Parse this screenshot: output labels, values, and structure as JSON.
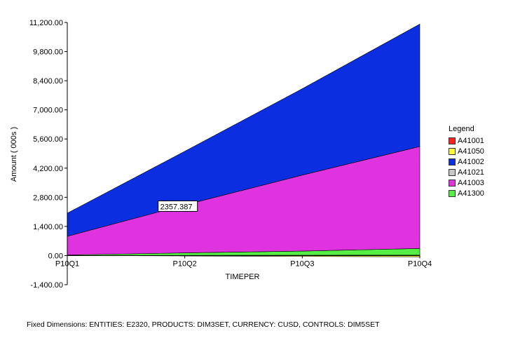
{
  "chart_data": {
    "type": "area",
    "stacked": true,
    "categories": [
      "P10Q1",
      "P10Q2",
      "P10Q3",
      "P10Q4"
    ],
    "xlabel": "TIMEPER",
    "ylabel": "Amount ( 000s )",
    "ylim": [
      -1400,
      11200
    ],
    "yticks": [
      "11,200.00",
      "9,800.00",
      "8,400.00",
      "7,000.00",
      "5,600.00",
      "4,200.00",
      "2,800.00",
      "1,400.00",
      "0.00",
      "-1,400.00"
    ],
    "ytick_values": [
      11200,
      9800,
      8400,
      7000,
      5600,
      4200,
      2800,
      1400,
      0,
      -1400
    ],
    "legend_title": "Legend",
    "legend_position": "right",
    "series": [
      {
        "name": "A41001",
        "color": "#ff2020",
        "values": [
          5,
          10,
          15,
          20
        ]
      },
      {
        "name": "A41050",
        "color": "#ffff33",
        "values": [
          0,
          -20,
          -40,
          -60
        ]
      },
      {
        "name": "A41021",
        "color": "#c8c8c8",
        "values": [
          0,
          0,
          0,
          0
        ]
      },
      {
        "name": "A41300",
        "color": "#55ee44",
        "values": [
          20,
          120,
          200,
          320
        ]
      },
      {
        "name": "A41003",
        "color": "#e033e0",
        "values": [
          900,
          2300,
          3650,
          4900
        ]
      },
      {
        "name": "A41002",
        "color": "#0a2ee0",
        "values": [
          1110,
          2580,
          4150,
          5880
        ]
      }
    ],
    "legend_order": [
      "A41001",
      "A41050",
      "A41002",
      "A41021",
      "A41003",
      "A41300"
    ],
    "annotation": {
      "text": "2357.387",
      "category": "P10Q2",
      "value": 2357.387
    }
  },
  "footer": "Fixed Dimensions: ENTITIES: E2320, PRODUCTS: DIM3SET, CURRENCY: CUSD, CONTROLS: DIM5SET"
}
